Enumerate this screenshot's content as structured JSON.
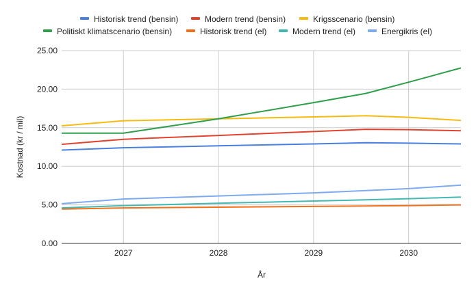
{
  "chart_data": {
    "type": "line",
    "xlabel": "År",
    "ylabel": "Kostnad (kr / mil)",
    "xlim": [
      2026.35,
      2030.55
    ],
    "ylim": [
      0,
      25
    ],
    "x_ticks": [
      2027,
      2028,
      2029,
      2030
    ],
    "x_tick_labels": [
      "2027",
      "2028",
      "2029",
      "2030"
    ],
    "y_ticks": [
      0,
      5,
      10,
      15,
      20,
      25
    ],
    "y_tick_labels": [
      "0.00",
      "5.00",
      "10.00",
      "15.00",
      "20.00",
      "25.00"
    ],
    "grid": true,
    "legend_position": "top",
    "x": [
      2026.35,
      2027,
      2028,
      2029,
      2029.55,
      2030,
      2030.55
    ],
    "series": [
      {
        "name": "Historisk trend (bensin)",
        "color": "#4a7fe0",
        "values": [
          12.1,
          12.4,
          12.65,
          12.9,
          13.05,
          13.0,
          12.9
        ]
      },
      {
        "name": "Modern trend (bensin)",
        "color": "#e0442f",
        "values": [
          12.85,
          13.5,
          14.0,
          14.5,
          14.8,
          14.75,
          14.6
        ]
      },
      {
        "name": "Krigsscenario (bensin)",
        "color": "#f6bb10",
        "values": [
          15.25,
          15.9,
          16.15,
          16.4,
          16.55,
          16.35,
          15.95
        ]
      },
      {
        "name": "Politiskt klimatscenario (bensin)",
        "color": "#2f9e4b",
        "values": [
          14.3,
          14.3,
          16.15,
          18.25,
          19.45,
          20.9,
          22.75
        ]
      },
      {
        "name": "Historisk trend (el)",
        "color": "#f27019",
        "values": [
          4.45,
          4.6,
          4.7,
          4.8,
          4.85,
          4.9,
          5.0
        ]
      },
      {
        "name": "Modern trend (el)",
        "color": "#43b8b2",
        "values": [
          4.6,
          4.9,
          5.2,
          5.5,
          5.65,
          5.8,
          6.0
        ]
      },
      {
        "name": "Energikris (el)",
        "color": "#7eaaf0",
        "values": [
          5.15,
          5.75,
          6.15,
          6.55,
          6.85,
          7.1,
          7.55
        ]
      }
    ]
  }
}
